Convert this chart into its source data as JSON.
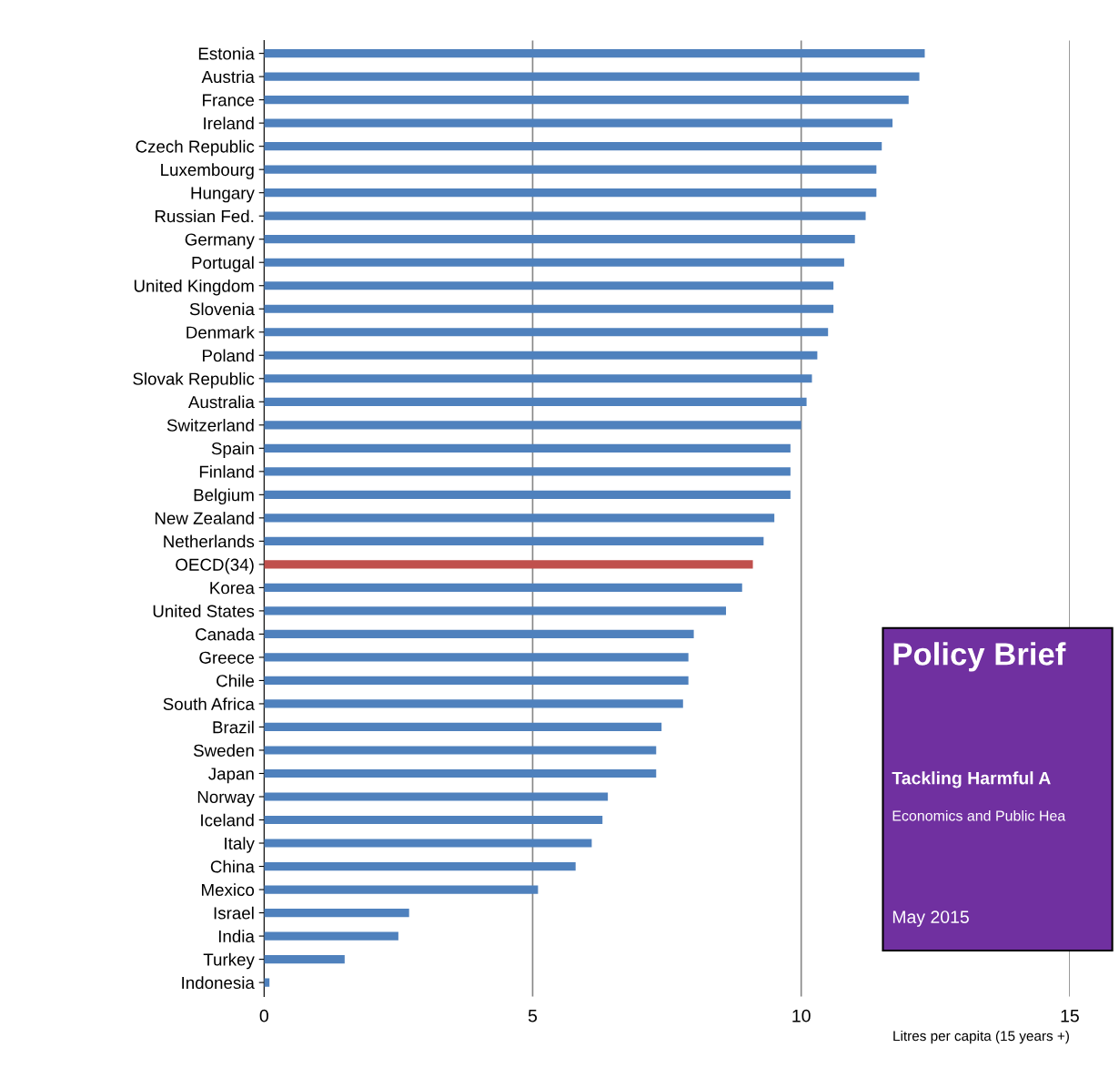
{
  "chart_data": {
    "type": "bar",
    "orientation": "horizontal",
    "categories": [
      "Estonia",
      "Austria",
      "France",
      "Ireland",
      "Czech Republic",
      "Luxembourg",
      "Hungary",
      "Russian Fed.",
      "Germany",
      "Portugal",
      "United Kingdom",
      "Slovenia",
      "Denmark",
      "Poland",
      "Slovak Republic",
      "Australia",
      "Switzerland",
      "Spain",
      "Finland",
      "Belgium",
      "New Zealand",
      "Netherlands",
      "OECD(34)",
      "Korea",
      "United States",
      "Canada",
      "Greece",
      "Chile",
      "South Africa",
      "Brazil",
      "Sweden",
      "Japan",
      "Norway",
      "Iceland",
      "Italy",
      "China",
      "Mexico",
      "Israel",
      "India",
      "Turkey",
      "Indonesia"
    ],
    "values": [
      12.3,
      12.2,
      12.0,
      11.7,
      11.5,
      11.4,
      11.4,
      11.2,
      11.0,
      10.8,
      10.6,
      10.6,
      10.5,
      10.3,
      10.2,
      10.1,
      10.0,
      9.8,
      9.8,
      9.8,
      9.5,
      9.3,
      9.1,
      8.9,
      8.6,
      8.0,
      7.9,
      7.9,
      7.8,
      7.4,
      7.3,
      7.3,
      6.4,
      6.3,
      6.1,
      5.8,
      5.1,
      2.7,
      2.5,
      1.5,
      0.1
    ],
    "colors": [
      "#4f81bd",
      "#4f81bd",
      "#4f81bd",
      "#4f81bd",
      "#4f81bd",
      "#4f81bd",
      "#4f81bd",
      "#4f81bd",
      "#4f81bd",
      "#4f81bd",
      "#4f81bd",
      "#4f81bd",
      "#4f81bd",
      "#4f81bd",
      "#4f81bd",
      "#4f81bd",
      "#4f81bd",
      "#4f81bd",
      "#4f81bd",
      "#4f81bd",
      "#4f81bd",
      "#4f81bd",
      "#c0504d",
      "#4f81bd",
      "#4f81bd",
      "#4f81bd",
      "#4f81bd",
      "#4f81bd",
      "#4f81bd",
      "#4f81bd",
      "#4f81bd",
      "#4f81bd",
      "#4f81bd",
      "#4f81bd",
      "#4f81bd",
      "#4f81bd",
      "#4f81bd",
      "#4f81bd",
      "#4f81bd",
      "#4f81bd",
      "#4f81bd"
    ],
    "xlim": [
      0,
      15
    ],
    "xticks": [
      0,
      5,
      10,
      15
    ],
    "grid": "x",
    "xlabel": "Litres per capita (15 years +)",
    "annotations": [
      "Policy Brief",
      "Tackling Harmful A",
      "Economics and Public Hea",
      "May 2015"
    ]
  }
}
